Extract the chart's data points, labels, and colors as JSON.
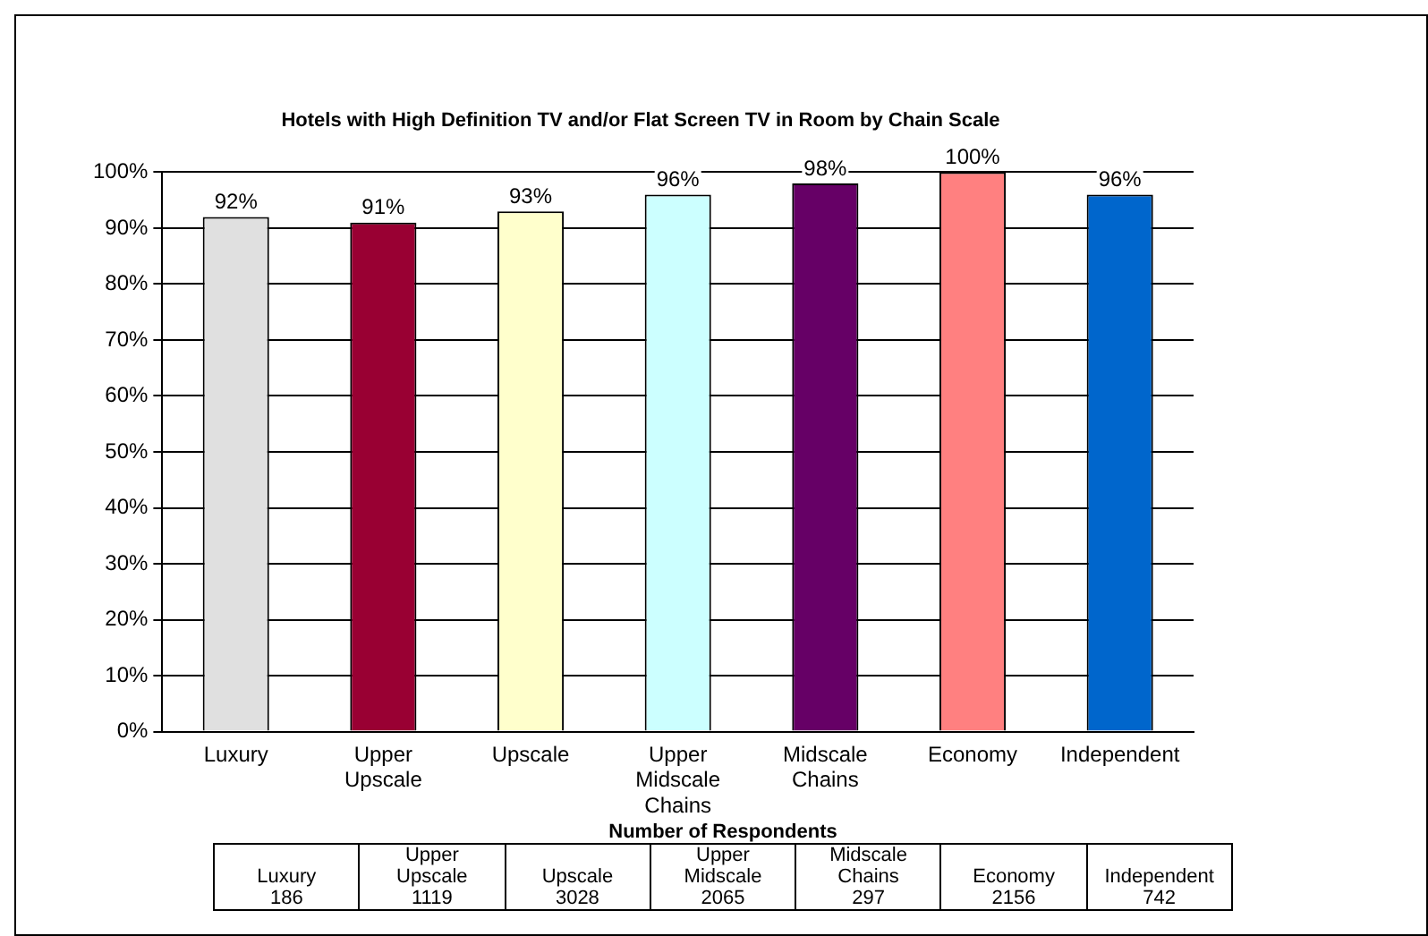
{
  "chart_data": {
    "type": "bar",
    "title": "Hotels with High Definition TV and/or Flat Screen TV in Room by Chain Scale",
    "categories": [
      "Luxury",
      "Upper Upscale",
      "Upscale",
      "Upper Midscale Chains",
      "Midscale Chains",
      "Economy",
      "Independent"
    ],
    "values": [
      92,
      91,
      93,
      96,
      98,
      100,
      96
    ],
    "colors": [
      "#e0e0e0",
      "#990033",
      "#ffffcc",
      "#ccffff",
      "#660066",
      "#ff8080",
      "#0066cc"
    ],
    "value_labels": [
      "92%",
      "91%",
      "93%",
      "96%",
      "98%",
      "100%",
      "96%"
    ],
    "ylim": [
      0,
      100
    ],
    "yticks": [
      {
        "value": 0,
        "label": "0%"
      },
      {
        "value": 10,
        "label": "10%"
      },
      {
        "value": 20,
        "label": "20%"
      },
      {
        "value": 30,
        "label": "30%"
      },
      {
        "value": 40,
        "label": "40%"
      },
      {
        "value": 50,
        "label": "50%"
      },
      {
        "value": 60,
        "label": "60%"
      },
      {
        "value": 70,
        "label": "70%"
      },
      {
        "value": 80,
        "label": "80%"
      },
      {
        "value": 90,
        "label": "90%"
      },
      {
        "value": 100,
        "label": "100%"
      }
    ],
    "grid": "y",
    "annotations": [
      "Number of Respondents",
      "Luxury\n186",
      "Upper\nUpscale\n1119",
      "Upscale\n3028",
      "Upper\nMidscale\n2065",
      "Midscale\nChains\n297",
      "Economy\n2156",
      "Independent\n742"
    ]
  }
}
